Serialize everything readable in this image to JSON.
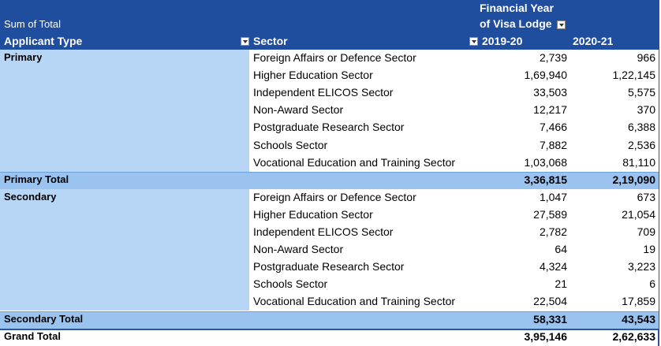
{
  "header": {
    "title": "Sum of Total",
    "column_group_lines": [
      "Financial Year",
      "of Visa Lodge"
    ]
  },
  "columns": [
    "Applicant Type",
    "Sector",
    "2019-20",
    "2020-21"
  ],
  "groups": [
    {
      "name": "Primary",
      "rows": [
        [
          "Foreign Affairs or Defence Sector",
          "2,739",
          "966"
        ],
        [
          "Higher Education Sector",
          "1,69,940",
          "1,22,145"
        ],
        [
          "Independent ELICOS Sector",
          "33,503",
          "5,575"
        ],
        [
          "Non-Award Sector",
          "12,217",
          "370"
        ],
        [
          "Postgraduate Research Sector",
          "7,466",
          "6,388"
        ],
        [
          "Schools Sector",
          "7,882",
          "2,536"
        ],
        [
          "Vocational Education and Training Sector",
          "1,03,068",
          "81,110"
        ]
      ],
      "total_label": "Primary Total",
      "total": [
        "3,36,815",
        "2,19,090"
      ]
    },
    {
      "name": "Secondary",
      "rows": [
        [
          "Foreign Affairs or Defence Sector",
          "1,047",
          "673"
        ],
        [
          "Higher Education Sector",
          "27,589",
          "21,054"
        ],
        [
          "Independent ELICOS Sector",
          "2,782",
          "709"
        ],
        [
          "Non-Award Sector",
          "64",
          "19"
        ],
        [
          "Postgraduate Research Sector",
          "4,324",
          "3,223"
        ],
        [
          "Schools Sector",
          "21",
          "6"
        ],
        [
          "Vocational Education and Training Sector",
          "22,504",
          "17,859"
        ]
      ],
      "total_label": "Secondary Total",
      "total": [
        "58,331",
        "43,543"
      ]
    }
  ],
  "grand_total": {
    "label": "Grand Total",
    "values": [
      "3,95,146",
      "2,62,633"
    ]
  }
}
